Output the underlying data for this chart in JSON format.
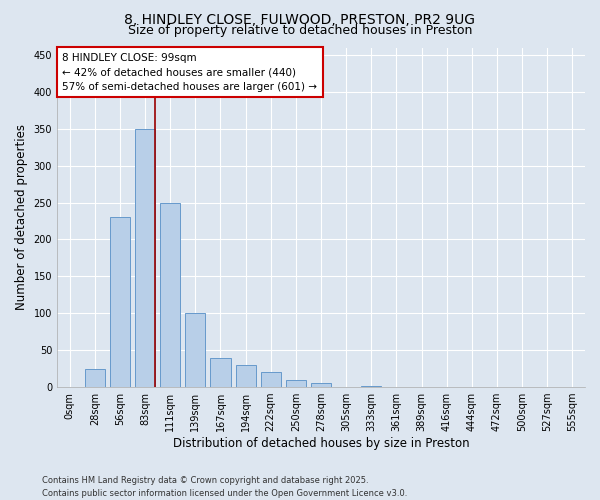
{
  "title_line1": "8, HINDLEY CLOSE, FULWOOD, PRESTON, PR2 9UG",
  "title_line2": "Size of property relative to detached houses in Preston",
  "xlabel": "Distribution of detached houses by size in Preston",
  "ylabel": "Number of detached properties",
  "bar_labels": [
    "0sqm",
    "28sqm",
    "56sqm",
    "83sqm",
    "111sqm",
    "139sqm",
    "167sqm",
    "194sqm",
    "222sqm",
    "250sqm",
    "278sqm",
    "305sqm",
    "333sqm",
    "361sqm",
    "389sqm",
    "416sqm",
    "444sqm",
    "472sqm",
    "500sqm",
    "527sqm",
    "555sqm"
  ],
  "bar_values": [
    0,
    25,
    230,
    350,
    250,
    100,
    40,
    30,
    20,
    10,
    5,
    0,
    2,
    0,
    0,
    0,
    0,
    0,
    0,
    0,
    0
  ],
  "bar_color": "#b8cfe8",
  "bar_edgecolor": "#6699cc",
  "background_color": "#dde6f0",
  "grid_color": "#ffffff",
  "annotation_text": "8 HINDLEY CLOSE: 99sqm\n← 42% of detached houses are smaller (440)\n57% of semi-detached houses are larger (601) →",
  "annotation_box_color": "#ffffff",
  "annotation_box_edgecolor": "#cc0000",
  "red_line_bar_index": 3,
  "ylim": [
    0,
    460
  ],
  "yticks": [
    0,
    50,
    100,
    150,
    200,
    250,
    300,
    350,
    400,
    450
  ],
  "footnote": "Contains HM Land Registry data © Crown copyright and database right 2025.\nContains public sector information licensed under the Open Government Licence v3.0.",
  "title_fontsize": 10,
  "subtitle_fontsize": 9,
  "axis_label_fontsize": 8.5,
  "tick_fontsize": 7,
  "annotation_fontsize": 7.5,
  "footnote_fontsize": 6
}
